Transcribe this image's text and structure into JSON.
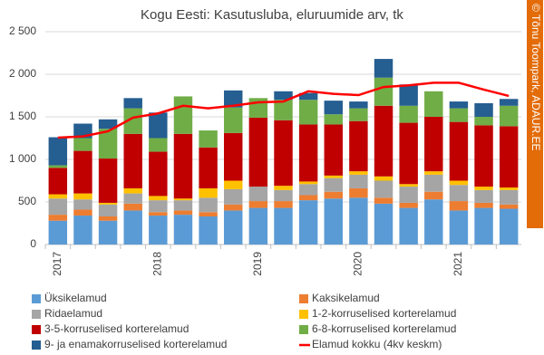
{
  "chart_data": {
    "type": "bar",
    "stacked": true,
    "title": "Kogu Eesti: Kasutusluba, eluruumide arv, tk",
    "credit": "© Tõnu Toompark, ADAUR.EE",
    "categories": [
      "2017",
      null,
      null,
      null,
      "2018",
      null,
      null,
      null,
      "2019",
      null,
      null,
      null,
      "2020",
      null,
      null,
      null,
      "2021",
      null,
      null
    ],
    "ylim": [
      0,
      2500
    ],
    "yticks": [
      0,
      500,
      {
        "value": 1000,
        "label": "1 000"
      },
      {
        "value": 1500,
        "label": "1 500"
      },
      {
        "value": 2000,
        "label": "2 000"
      },
      {
        "value": 2500,
        "label": "2 500"
      }
    ],
    "grid": true,
    "series": [
      {
        "name": "Üksikelamud",
        "color": "#5b9bd5",
        "values": [
          280,
          340,
          280,
          400,
          340,
          350,
          330,
          400,
          430,
          430,
          520,
          540,
          550,
          480,
          430,
          530,
          400,
          430,
          420
        ]
      },
      {
        "name": "Kaksikelamud",
        "color": "#ed7d31",
        "values": [
          70,
          70,
          50,
          80,
          40,
          50,
          50,
          70,
          80,
          80,
          60,
          80,
          110,
          70,
          60,
          90,
          110,
          60,
          50
        ]
      },
      {
        "name": "Ridaelamud",
        "color": "#a5a5a5",
        "values": [
          190,
          120,
          140,
          120,
          140,
          120,
          170,
          180,
          170,
          130,
          130,
          160,
          160,
          200,
          190,
          200,
          190,
          150,
          170
        ]
      },
      {
        "name": "1-2-korruselised korterelamud",
        "color": "#ffc000",
        "values": [
          50,
          70,
          20,
          60,
          50,
          20,
          110,
          100,
          0,
          50,
          30,
          30,
          40,
          50,
          30,
          40,
          50,
          40,
          30
        ]
      },
      {
        "name": "3-5-korruselised korterelamud",
        "color": "#c00000",
        "values": [
          310,
          500,
          520,
          640,
          520,
          760,
          480,
          560,
          810,
          770,
          670,
          600,
          590,
          830,
          720,
          640,
          690,
          720,
          720
        ]
      },
      {
        "name": "6-8-korruselised korterelamud",
        "color": "#70ad47",
        "values": [
          30,
          150,
          350,
          300,
          160,
          440,
          200,
          300,
          230,
          240,
          290,
          120,
          150,
          330,
          200,
          300,
          160,
          100,
          240
        ]
      },
      {
        "name": "9- ja enamakorruselised korterelamud",
        "color": "#255e91",
        "values": [
          330,
          170,
          110,
          120,
          300,
          0,
          0,
          200,
          0,
          100,
          80,
          160,
          80,
          220,
          250,
          0,
          80,
          160,
          80
        ]
      },
      {
        "name": "Elamud kokku (4kv keskm)",
        "color": "#ff0000",
        "type": "line",
        "values": [
          1255,
          1270,
          1330,
          1490,
          1540,
          1630,
          1600,
          1630,
          1670,
          1680,
          1800,
          1770,
          1755,
          1850,
          1870,
          1900,
          1900,
          1820,
          1745
        ]
      }
    ]
  }
}
